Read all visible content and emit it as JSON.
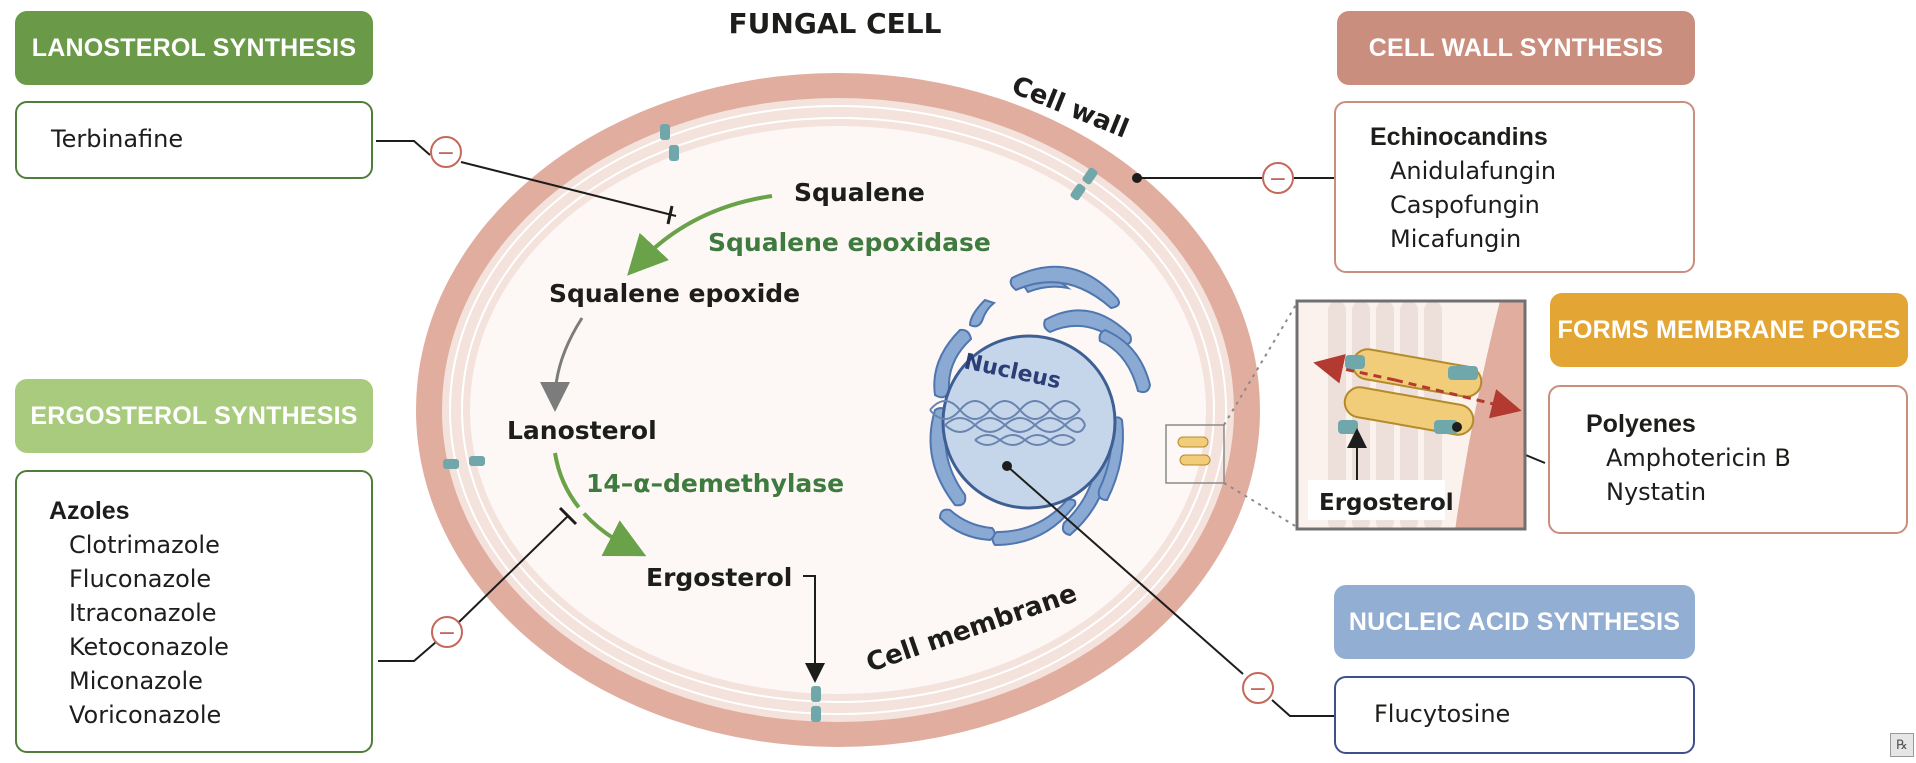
{
  "title": "FUNGAL CELL",
  "cell_labels": {
    "cell_wall": "Cell wall",
    "cell_membrane": "Cell membrane",
    "nucleus": "Nucleus"
  },
  "pathway": {
    "squalene": "Squalene",
    "squalene_epoxidase": "Squalene epoxidase",
    "squalene_epoxide": "Squalene epoxide",
    "lanosterol": "Lanosterol",
    "demethylase": "14–α–demethylase",
    "ergosterol": "Ergosterol"
  },
  "inset": {
    "ergosterol_label": "Ergosterol"
  },
  "inhibition_symbol": "−",
  "panels": {
    "lanosterol": {
      "header": "LANOSTEROL SYNTHESIS",
      "header_color": "#6a9a48",
      "drugs": [
        "Terbinafine"
      ]
    },
    "ergosterol": {
      "header": "ERGOSTEROL SYNTHESIS",
      "header_color": "#a9cb7d",
      "class": "Azoles",
      "drugs": [
        "Clotrimazole",
        "Fluconazole",
        "Itraconazole",
        "Ketoconazole",
        "Miconazole",
        "Voriconazole"
      ]
    },
    "cell_wall": {
      "header": "CELL WALL SYNTHESIS",
      "header_color": "#c98e7e",
      "class": "Echinocandins",
      "drugs": [
        "Anidulafungin",
        "Caspofungin",
        "Micafungin"
      ]
    },
    "membrane_pores": {
      "header": "FORMS MEMBRANE PORES",
      "header_color": "#e3a534",
      "class": "Polyenes",
      "drugs": [
        "Amphotericin B",
        "Nystatin"
      ]
    },
    "nucleic_acid": {
      "header": "NUCLEIC ACID SYNTHESIS",
      "header_color": "#93aed3",
      "drugs": [
        "Flucytosine"
      ]
    }
  },
  "colors": {
    "green_text": "#3f7a3f",
    "cell_wall": "#e0ad9f",
    "membrane": "#f4e2dc",
    "cytoplasm": "#fdf8f6",
    "nucleus": "#c6d6ea",
    "er": "#6f95c8",
    "inhibit_circle": "#c4685a"
  },
  "footer_mark": "℞"
}
